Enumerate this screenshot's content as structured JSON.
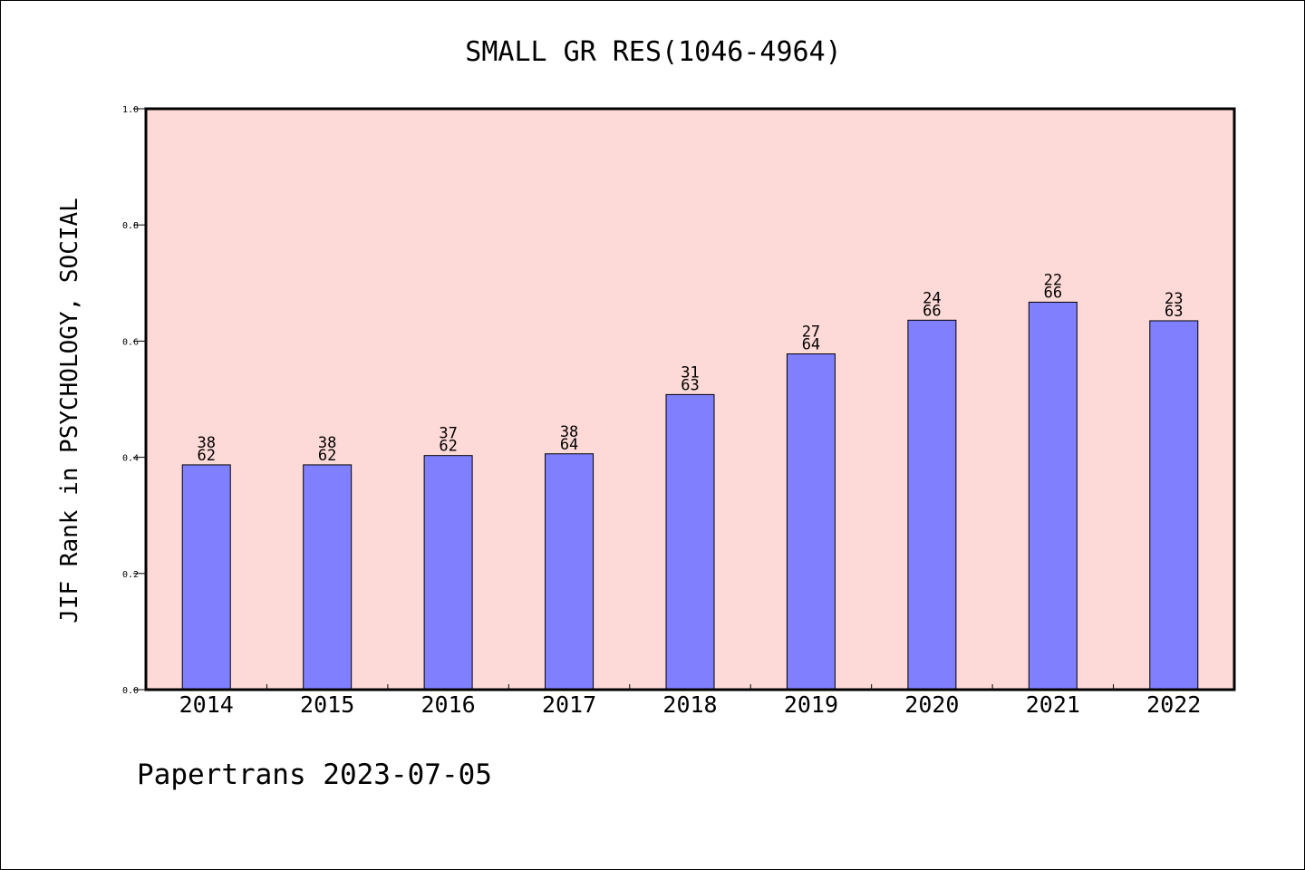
{
  "chart_data": {
    "type": "bar",
    "title": "SMALL GR RES(1046-4964)",
    "xlabel": "",
    "ylabel": "JIF Rank in PSYCHOLOGY, SOCIAL",
    "categories": [
      "2014",
      "2015",
      "2016",
      "2017",
      "2018",
      "2019",
      "2020",
      "2021",
      "2022"
    ],
    "values": [
      0.387,
      0.387,
      0.403,
      0.406,
      0.508,
      0.578,
      0.636,
      0.667,
      0.635
    ],
    "rank": [
      "38",
      "38",
      "37",
      "38",
      "31",
      "27",
      "24",
      "22",
      "23"
    ],
    "total": [
      "62",
      "62",
      "62",
      "64",
      "63",
      "64",
      "66",
      "66",
      "63"
    ],
    "ylim": [
      0,
      1.0
    ],
    "yticks": [
      "0.0",
      "0.2",
      "0.4",
      "0.6",
      "0.8",
      "1.0"
    ],
    "grid": false,
    "legend": "none",
    "colors": {
      "bar": "#8080ff",
      "plot_background": "#fddad7",
      "axes": "#000000"
    }
  },
  "footer": {
    "credit": "Papertrans 2023-07-05"
  }
}
